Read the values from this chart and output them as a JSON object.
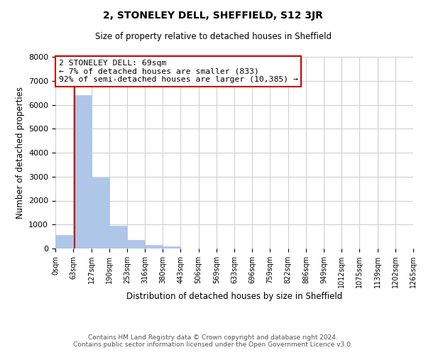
{
  "title": "2, STONELEY DELL, SHEFFIELD, S12 3JR",
  "subtitle": "Size of property relative to detached houses in Sheffield",
  "xlabel": "Distribution of detached houses by size in Sheffield",
  "ylabel": "Number of detached properties",
  "bar_edges": [
    0,
    63,
    127,
    190,
    253,
    316,
    380,
    443,
    506,
    569,
    633,
    696,
    759,
    822,
    886,
    949,
    1012,
    1075,
    1139,
    1202,
    1265
  ],
  "bar_heights": [
    550,
    6400,
    2950,
    950,
    370,
    160,
    80,
    0,
    0,
    0,
    0,
    0,
    0,
    0,
    0,
    0,
    0,
    0,
    0,
    0
  ],
  "bar_color": "#aec6e8",
  "bar_edge_color": "#aec6e8",
  "property_line_x": 69,
  "property_line_color": "#cc0000",
  "annotation_line1": "2 STONELEY DELL: 69sqm",
  "annotation_line2": "← 7% of detached houses are smaller (833)",
  "annotation_line3": "92% of semi-detached houses are larger (10,385) →",
  "annotation_box_color": "#ffffff",
  "annotation_box_edge": "#cc0000",
  "ylim": [
    0,
    8000
  ],
  "yticks": [
    0,
    1000,
    2000,
    3000,
    4000,
    5000,
    6000,
    7000,
    8000
  ],
  "tick_labels": [
    "0sqm",
    "63sqm",
    "127sqm",
    "190sqm",
    "253sqm",
    "316sqm",
    "380sqm",
    "443sqm",
    "506sqm",
    "569sqm",
    "633sqm",
    "696sqm",
    "759sqm",
    "822sqm",
    "886sqm",
    "949sqm",
    "1012sqm",
    "1075sqm",
    "1139sqm",
    "1202sqm",
    "1265sqm"
  ],
  "footer_text": "Contains HM Land Registry data © Crown copyright and database right 2024.\nContains public sector information licensed under the Open Government Licence v3.0.",
  "grid_color": "#cccccc",
  "background_color": "#ffffff"
}
